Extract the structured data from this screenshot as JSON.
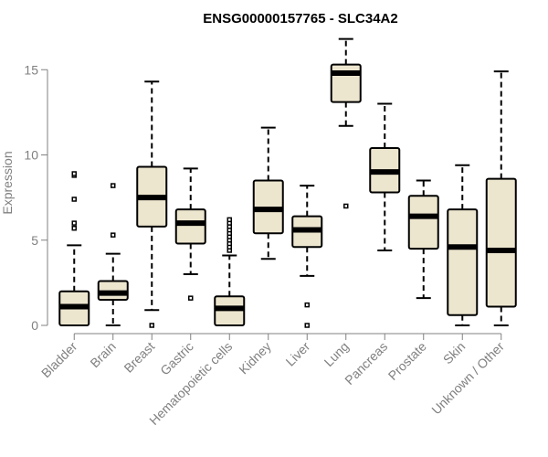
{
  "chart_data": {
    "type": "boxplot",
    "title": "ENSG00000157765 - SLC34A2",
    "xlabel": "",
    "ylabel": "Expression",
    "ylim": [
      0,
      16.3
    ],
    "yticks": [
      0,
      5,
      10,
      15
    ],
    "colors": {
      "box_fill": "#ede6cf",
      "box_stroke": "#000000",
      "axis": "#808080"
    },
    "categories": [
      "Bladder",
      "Brain",
      "Breast",
      "Gastric",
      "Hematopoietic cells",
      "Kidney",
      "Liver",
      "Lung",
      "Pancreas",
      "Prostate",
      "Skin",
      "Unknown / Other"
    ],
    "boxes": [
      {
        "category": "Bladder",
        "whisker_low": 0,
        "q1": 0,
        "median": 1.1,
        "q3": 2.0,
        "whisker_high": 4.7,
        "outliers": [
          5.7,
          6.0,
          7.4,
          8.8,
          8.9
        ]
      },
      {
        "category": "Brain",
        "whisker_low": 0,
        "q1": 1.5,
        "median": 1.9,
        "q3": 2.6,
        "whisker_high": 4.2,
        "outliers": [
          5.3,
          8.2
        ]
      },
      {
        "category": "Breast",
        "whisker_low": 0.9,
        "q1": 5.8,
        "median": 7.5,
        "q3": 9.3,
        "whisker_high": 14.3,
        "outliers": [
          0
        ]
      },
      {
        "category": "Gastric",
        "whisker_low": 3.0,
        "q1": 4.8,
        "median": 6.0,
        "q3": 6.8,
        "whisker_high": 9.2,
        "outliers": [
          1.6
        ]
      },
      {
        "category": "Hematopoietic cells",
        "whisker_low": 0,
        "q1": 0,
        "median": 1.0,
        "q3": 1.7,
        "whisker_high": 4.1,
        "outliers": [
          4.4,
          4.6,
          4.8,
          5.0,
          5.2,
          5.4,
          5.6,
          5.8,
          6.0,
          6.2
        ]
      },
      {
        "category": "Kidney",
        "whisker_low": 3.9,
        "q1": 5.4,
        "median": 6.8,
        "q3": 8.5,
        "whisker_high": 11.6,
        "outliers": []
      },
      {
        "category": "Liver",
        "whisker_low": 2.9,
        "q1": 4.6,
        "median": 5.6,
        "q3": 6.4,
        "whisker_high": 8.2,
        "outliers": [
          0,
          1.2
        ]
      },
      {
        "category": "Lung",
        "whisker_low": 11.7,
        "q1": 13.1,
        "median": 14.8,
        "q3": 15.3,
        "whisker_high": 16.8,
        "outliers": [
          7.0
        ]
      },
      {
        "category": "Pancreas",
        "whisker_low": 4.4,
        "q1": 7.8,
        "median": 9.0,
        "q3": 10.4,
        "whisker_high": 13.0,
        "outliers": []
      },
      {
        "category": "Prostate",
        "whisker_low": 1.6,
        "q1": 4.5,
        "median": 6.4,
        "q3": 7.6,
        "whisker_high": 8.5,
        "outliers": []
      },
      {
        "category": "Skin",
        "whisker_low": 0,
        "q1": 0.6,
        "median": 4.6,
        "q3": 6.8,
        "whisker_high": 9.4,
        "outliers": []
      },
      {
        "category": "Unknown / Other",
        "whisker_low": 0,
        "q1": 1.1,
        "median": 4.4,
        "q3": 8.6,
        "whisker_high": 14.9,
        "outliers": []
      }
    ]
  }
}
